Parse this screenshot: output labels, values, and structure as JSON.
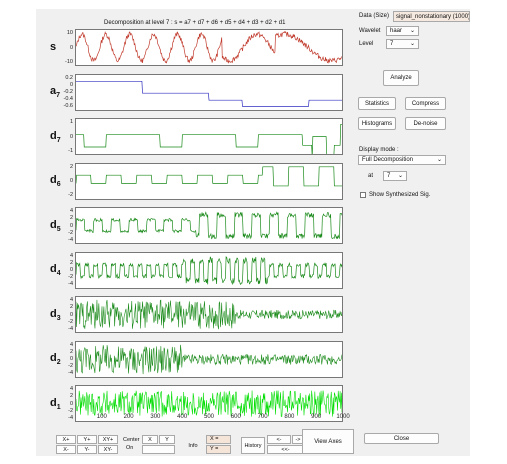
{
  "plot": {
    "title": "Decomposition at level 7 : s = a7 + d7 + d6 + d5 + d4 + d3 + d2 + d1",
    "panels": [
      {
        "label": "s",
        "sub": "",
        "yticks": [
          "10",
          "0",
          "-10"
        ],
        "color": "#c0392b"
      },
      {
        "label": "a",
        "sub": "7",
        "yticks": [
          "0.2",
          "0",
          "-0.2",
          "-0.4",
          "-0.6"
        ],
        "color": "#3030c0"
      },
      {
        "label": "d",
        "sub": "7",
        "yticks": [
          "1",
          "0",
          "-1"
        ],
        "color": "#1a8a1a"
      },
      {
        "label": "d",
        "sub": "6",
        "yticks": [
          "2",
          "0",
          "-2"
        ],
        "color": "#1a8a1a"
      },
      {
        "label": "d",
        "sub": "5",
        "yticks": [
          "4",
          "2",
          "0",
          "-2",
          "-4"
        ],
        "color": "#1a8a1a"
      },
      {
        "label": "d",
        "sub": "4",
        "yticks": [
          "4",
          "2",
          "0",
          "-2",
          "-4"
        ],
        "color": "#1a8a1a"
      },
      {
        "label": "d",
        "sub": "3",
        "yticks": [
          "4",
          "2",
          "0",
          "-2",
          "-4"
        ],
        "color": "#1a8a1a"
      },
      {
        "label": "d",
        "sub": "2",
        "yticks": [
          "4",
          "2",
          "0",
          "-2",
          "-4"
        ],
        "color": "#1a8a1a"
      },
      {
        "label": "d",
        "sub": "1",
        "yticks": [
          "4",
          "2",
          "0",
          "-2",
          "-4"
        ],
        "color": "#00dd00"
      }
    ],
    "xticks": [
      "100",
      "200",
      "300",
      "400",
      "500",
      "600",
      "700",
      "800",
      "900",
      "1000"
    ]
  },
  "controls": {
    "data_label": "Data  (Size)",
    "data_value": "signal_nonstationary  (1000)",
    "wavelet_label": "Wavelet",
    "wavelet_value": "haar",
    "level_label": "Level",
    "level_value": "7",
    "analyze": "Analyze",
    "statistics": "Statistics",
    "compress": "Compress",
    "histograms": "Histograms",
    "denoise": "De-noise",
    "display_mode_label": "Display mode :",
    "display_mode_value": "Full Decomposition",
    "at_label": "at",
    "at_value": "7",
    "show_synth": "Show Synthesized Sig.",
    "close": "Close"
  },
  "bottom": {
    "xplus": "X+",
    "yplus": "Y+",
    "xyplus": "XY+",
    "xminus": "X-",
    "yminus": "Y-",
    "xyminus": "XY-",
    "center": "Center",
    "on": "On",
    "x": "X",
    "y": "Y",
    "info": "Info",
    "x_eq": "X =",
    "y_eq": "Y =",
    "history": "History",
    "hist_left": "<-",
    "hist_right": "->",
    "hist_both": "<<-",
    "view_axes": "View Axes"
  }
}
